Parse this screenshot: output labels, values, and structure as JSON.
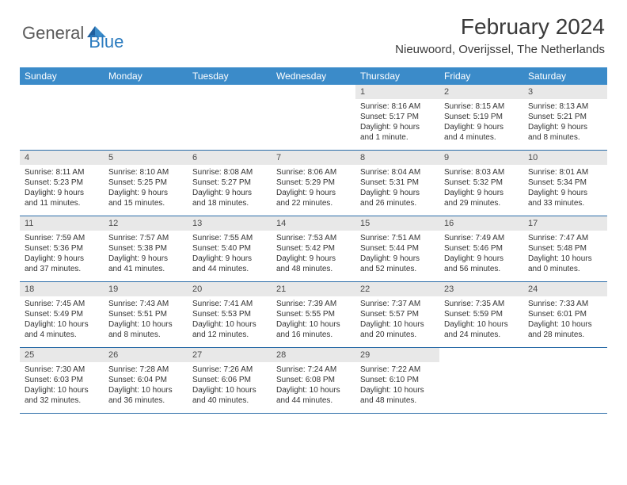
{
  "logo": {
    "word1": "General",
    "word2": "Blue"
  },
  "title": "February 2024",
  "location": "Nieuwoord, Overijssel, The Netherlands",
  "colors": {
    "header_bg": "#3b8bc9",
    "header_text": "#ffffff",
    "daynum_bg": "#e8e8e8",
    "row_border": "#2b6ca8",
    "logo_gray": "#5a5a5a",
    "logo_blue": "#2b7bbf",
    "text": "#333333"
  },
  "weekdays": [
    "Sunday",
    "Monday",
    "Tuesday",
    "Wednesday",
    "Thursday",
    "Friday",
    "Saturday"
  ],
  "weeks": [
    [
      {
        "empty": true
      },
      {
        "empty": true
      },
      {
        "empty": true
      },
      {
        "empty": true
      },
      {
        "day": "1",
        "sunrise": "Sunrise: 8:16 AM",
        "sunset": "Sunset: 5:17 PM",
        "daylight": "Daylight: 9 hours and 1 minute."
      },
      {
        "day": "2",
        "sunrise": "Sunrise: 8:15 AM",
        "sunset": "Sunset: 5:19 PM",
        "daylight": "Daylight: 9 hours and 4 minutes."
      },
      {
        "day": "3",
        "sunrise": "Sunrise: 8:13 AM",
        "sunset": "Sunset: 5:21 PM",
        "daylight": "Daylight: 9 hours and 8 minutes."
      }
    ],
    [
      {
        "day": "4",
        "sunrise": "Sunrise: 8:11 AM",
        "sunset": "Sunset: 5:23 PM",
        "daylight": "Daylight: 9 hours and 11 minutes."
      },
      {
        "day": "5",
        "sunrise": "Sunrise: 8:10 AM",
        "sunset": "Sunset: 5:25 PM",
        "daylight": "Daylight: 9 hours and 15 minutes."
      },
      {
        "day": "6",
        "sunrise": "Sunrise: 8:08 AM",
        "sunset": "Sunset: 5:27 PM",
        "daylight": "Daylight: 9 hours and 18 minutes."
      },
      {
        "day": "7",
        "sunrise": "Sunrise: 8:06 AM",
        "sunset": "Sunset: 5:29 PM",
        "daylight": "Daylight: 9 hours and 22 minutes."
      },
      {
        "day": "8",
        "sunrise": "Sunrise: 8:04 AM",
        "sunset": "Sunset: 5:31 PM",
        "daylight": "Daylight: 9 hours and 26 minutes."
      },
      {
        "day": "9",
        "sunrise": "Sunrise: 8:03 AM",
        "sunset": "Sunset: 5:32 PM",
        "daylight": "Daylight: 9 hours and 29 minutes."
      },
      {
        "day": "10",
        "sunrise": "Sunrise: 8:01 AM",
        "sunset": "Sunset: 5:34 PM",
        "daylight": "Daylight: 9 hours and 33 minutes."
      }
    ],
    [
      {
        "day": "11",
        "sunrise": "Sunrise: 7:59 AM",
        "sunset": "Sunset: 5:36 PM",
        "daylight": "Daylight: 9 hours and 37 minutes."
      },
      {
        "day": "12",
        "sunrise": "Sunrise: 7:57 AM",
        "sunset": "Sunset: 5:38 PM",
        "daylight": "Daylight: 9 hours and 41 minutes."
      },
      {
        "day": "13",
        "sunrise": "Sunrise: 7:55 AM",
        "sunset": "Sunset: 5:40 PM",
        "daylight": "Daylight: 9 hours and 44 minutes."
      },
      {
        "day": "14",
        "sunrise": "Sunrise: 7:53 AM",
        "sunset": "Sunset: 5:42 PM",
        "daylight": "Daylight: 9 hours and 48 minutes."
      },
      {
        "day": "15",
        "sunrise": "Sunrise: 7:51 AM",
        "sunset": "Sunset: 5:44 PM",
        "daylight": "Daylight: 9 hours and 52 minutes."
      },
      {
        "day": "16",
        "sunrise": "Sunrise: 7:49 AM",
        "sunset": "Sunset: 5:46 PM",
        "daylight": "Daylight: 9 hours and 56 minutes."
      },
      {
        "day": "17",
        "sunrise": "Sunrise: 7:47 AM",
        "sunset": "Sunset: 5:48 PM",
        "daylight": "Daylight: 10 hours and 0 minutes."
      }
    ],
    [
      {
        "day": "18",
        "sunrise": "Sunrise: 7:45 AM",
        "sunset": "Sunset: 5:49 PM",
        "daylight": "Daylight: 10 hours and 4 minutes."
      },
      {
        "day": "19",
        "sunrise": "Sunrise: 7:43 AM",
        "sunset": "Sunset: 5:51 PM",
        "daylight": "Daylight: 10 hours and 8 minutes."
      },
      {
        "day": "20",
        "sunrise": "Sunrise: 7:41 AM",
        "sunset": "Sunset: 5:53 PM",
        "daylight": "Daylight: 10 hours and 12 minutes."
      },
      {
        "day": "21",
        "sunrise": "Sunrise: 7:39 AM",
        "sunset": "Sunset: 5:55 PM",
        "daylight": "Daylight: 10 hours and 16 minutes."
      },
      {
        "day": "22",
        "sunrise": "Sunrise: 7:37 AM",
        "sunset": "Sunset: 5:57 PM",
        "daylight": "Daylight: 10 hours and 20 minutes."
      },
      {
        "day": "23",
        "sunrise": "Sunrise: 7:35 AM",
        "sunset": "Sunset: 5:59 PM",
        "daylight": "Daylight: 10 hours and 24 minutes."
      },
      {
        "day": "24",
        "sunrise": "Sunrise: 7:33 AM",
        "sunset": "Sunset: 6:01 PM",
        "daylight": "Daylight: 10 hours and 28 minutes."
      }
    ],
    [
      {
        "day": "25",
        "sunrise": "Sunrise: 7:30 AM",
        "sunset": "Sunset: 6:03 PM",
        "daylight": "Daylight: 10 hours and 32 minutes."
      },
      {
        "day": "26",
        "sunrise": "Sunrise: 7:28 AM",
        "sunset": "Sunset: 6:04 PM",
        "daylight": "Daylight: 10 hours and 36 minutes."
      },
      {
        "day": "27",
        "sunrise": "Sunrise: 7:26 AM",
        "sunset": "Sunset: 6:06 PM",
        "daylight": "Daylight: 10 hours and 40 minutes."
      },
      {
        "day": "28",
        "sunrise": "Sunrise: 7:24 AM",
        "sunset": "Sunset: 6:08 PM",
        "daylight": "Daylight: 10 hours and 44 minutes."
      },
      {
        "day": "29",
        "sunrise": "Sunrise: 7:22 AM",
        "sunset": "Sunset: 6:10 PM",
        "daylight": "Daylight: 10 hours and 48 minutes."
      },
      {
        "empty": true
      },
      {
        "empty": true
      }
    ]
  ]
}
